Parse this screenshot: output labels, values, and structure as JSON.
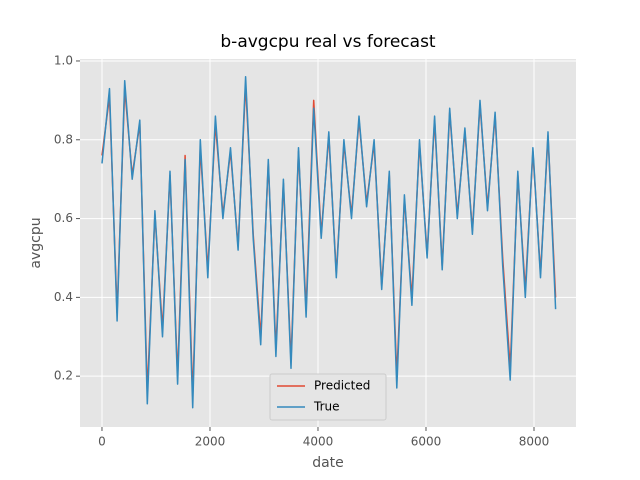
{
  "chart_data": {
    "type": "line",
    "title": "b-avgcpu real vs forecast",
    "x_label": "date",
    "y_label": "avgcpu",
    "x": [
      0,
      140,
      280,
      420,
      560,
      700,
      840,
      980,
      1120,
      1260,
      1400,
      1540,
      1680,
      1820,
      1960,
      2100,
      2240,
      2380,
      2520,
      2660,
      2800,
      2940,
      3080,
      3220,
      3360,
      3500,
      3640,
      3780,
      3920,
      4060,
      4200,
      4340,
      4480,
      4620,
      4760,
      4900,
      5040,
      5180,
      5320,
      5460,
      5600,
      5740,
      5880,
      6020,
      6160,
      6300,
      6440,
      6580,
      6720,
      6860,
      7000,
      7140,
      7280,
      7420,
      7560,
      7700,
      7840,
      7980,
      8120,
      8260,
      8400
    ],
    "series": [
      {
        "name": "Predicted",
        "color": "#e24a33",
        "values": [
          0.76,
          0.91,
          0.36,
          0.93,
          0.71,
          0.84,
          0.16,
          0.61,
          0.32,
          0.71,
          0.2,
          0.76,
          0.15,
          0.78,
          0.47,
          0.84,
          0.61,
          0.77,
          0.53,
          0.94,
          0.56,
          0.3,
          0.74,
          0.27,
          0.69,
          0.24,
          0.77,
          0.37,
          0.9,
          0.56,
          0.81,
          0.46,
          0.79,
          0.61,
          0.85,
          0.64,
          0.79,
          0.43,
          0.71,
          0.2,
          0.65,
          0.4,
          0.79,
          0.51,
          0.85,
          0.48,
          0.87,
          0.61,
          0.82,
          0.57,
          0.89,
          0.63,
          0.86,
          0.5,
          0.22,
          0.71,
          0.42,
          0.77,
          0.46,
          0.81,
          0.4
        ]
      },
      {
        "name": "True",
        "color": "#348abd",
        "values": [
          0.74,
          0.93,
          0.34,
          0.95,
          0.7,
          0.85,
          0.13,
          0.62,
          0.3,
          0.72,
          0.18,
          0.75,
          0.12,
          0.8,
          0.45,
          0.86,
          0.6,
          0.78,
          0.52,
          0.96,
          0.55,
          0.28,
          0.75,
          0.25,
          0.7,
          0.22,
          0.78,
          0.35,
          0.88,
          0.55,
          0.82,
          0.45,
          0.8,
          0.6,
          0.86,
          0.63,
          0.8,
          0.42,
          0.72,
          0.17,
          0.66,
          0.38,
          0.8,
          0.5,
          0.86,
          0.47,
          0.88,
          0.6,
          0.83,
          0.56,
          0.9,
          0.62,
          0.87,
          0.48,
          0.19,
          0.72,
          0.4,
          0.78,
          0.45,
          0.82,
          0.37
        ]
      }
    ],
    "xlim": [
      -407,
      8778
    ],
    "xticks": [
      0,
      2000,
      4000,
      6000,
      8000
    ],
    "ylim": [
      0.071,
      1.005
    ],
    "yticks": [
      0.2,
      0.4,
      0.6,
      0.8,
      {
        "value": 1,
        "label": "1.0"
      }
    ],
    "grid": true,
    "legend": "lower center"
  }
}
